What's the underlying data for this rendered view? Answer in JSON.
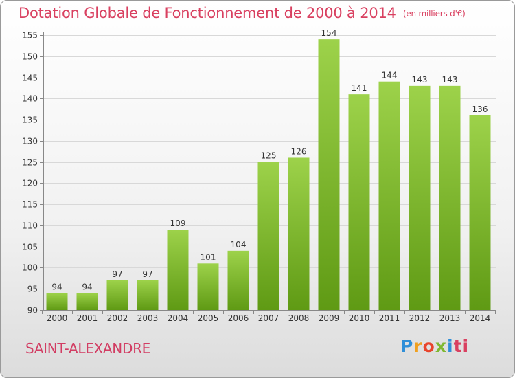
{
  "title": "Dotation Globale de Fonctionnement de 2000 à 2014",
  "unit": "(en milliers d'€)",
  "place": "SAINT-ALEXANDRE",
  "logo": "Proxiti",
  "colors": {
    "bar_top": "#9dd24a",
    "bar_bottom": "#5f9a14",
    "title": "#d94060"
  },
  "chart_data": {
    "type": "bar",
    "title": "Dotation Globale de Fonctionnement de 2000 à 2014",
    "subtitle": "(en milliers d'€)",
    "xlabel": "",
    "ylabel": "",
    "categories": [
      "2000",
      "2001",
      "2002",
      "2003",
      "2004",
      "2005",
      "2006",
      "2007",
      "2008",
      "2009",
      "2010",
      "2011",
      "2012",
      "2013",
      "2014"
    ],
    "values": [
      94,
      94,
      97,
      97,
      109,
      101,
      104,
      125,
      126,
      154,
      141,
      144,
      143,
      143,
      136
    ],
    "ylim": [
      90,
      155
    ],
    "yticks": [
      90,
      95,
      100,
      105,
      110,
      115,
      120,
      125,
      130,
      135,
      140,
      145,
      150,
      155
    ],
    "grid": true,
    "legend": "none"
  }
}
